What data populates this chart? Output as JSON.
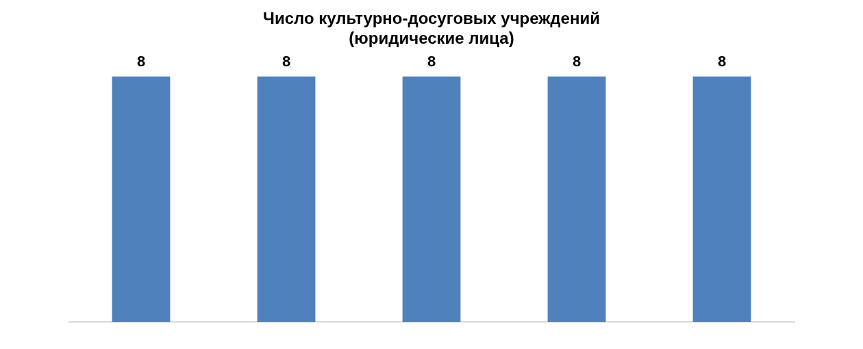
{
  "chart_data": {
    "type": "bar",
    "title": "Число культурно-досуговых учреждений\n(юридические лица)",
    "categories": [
      null,
      null,
      null,
      null,
      null
    ],
    "values": [
      8,
      8,
      8,
      8,
      8
    ],
    "color": "#4f81bd",
    "data_labels": true,
    "grid": false,
    "legend": false
  }
}
